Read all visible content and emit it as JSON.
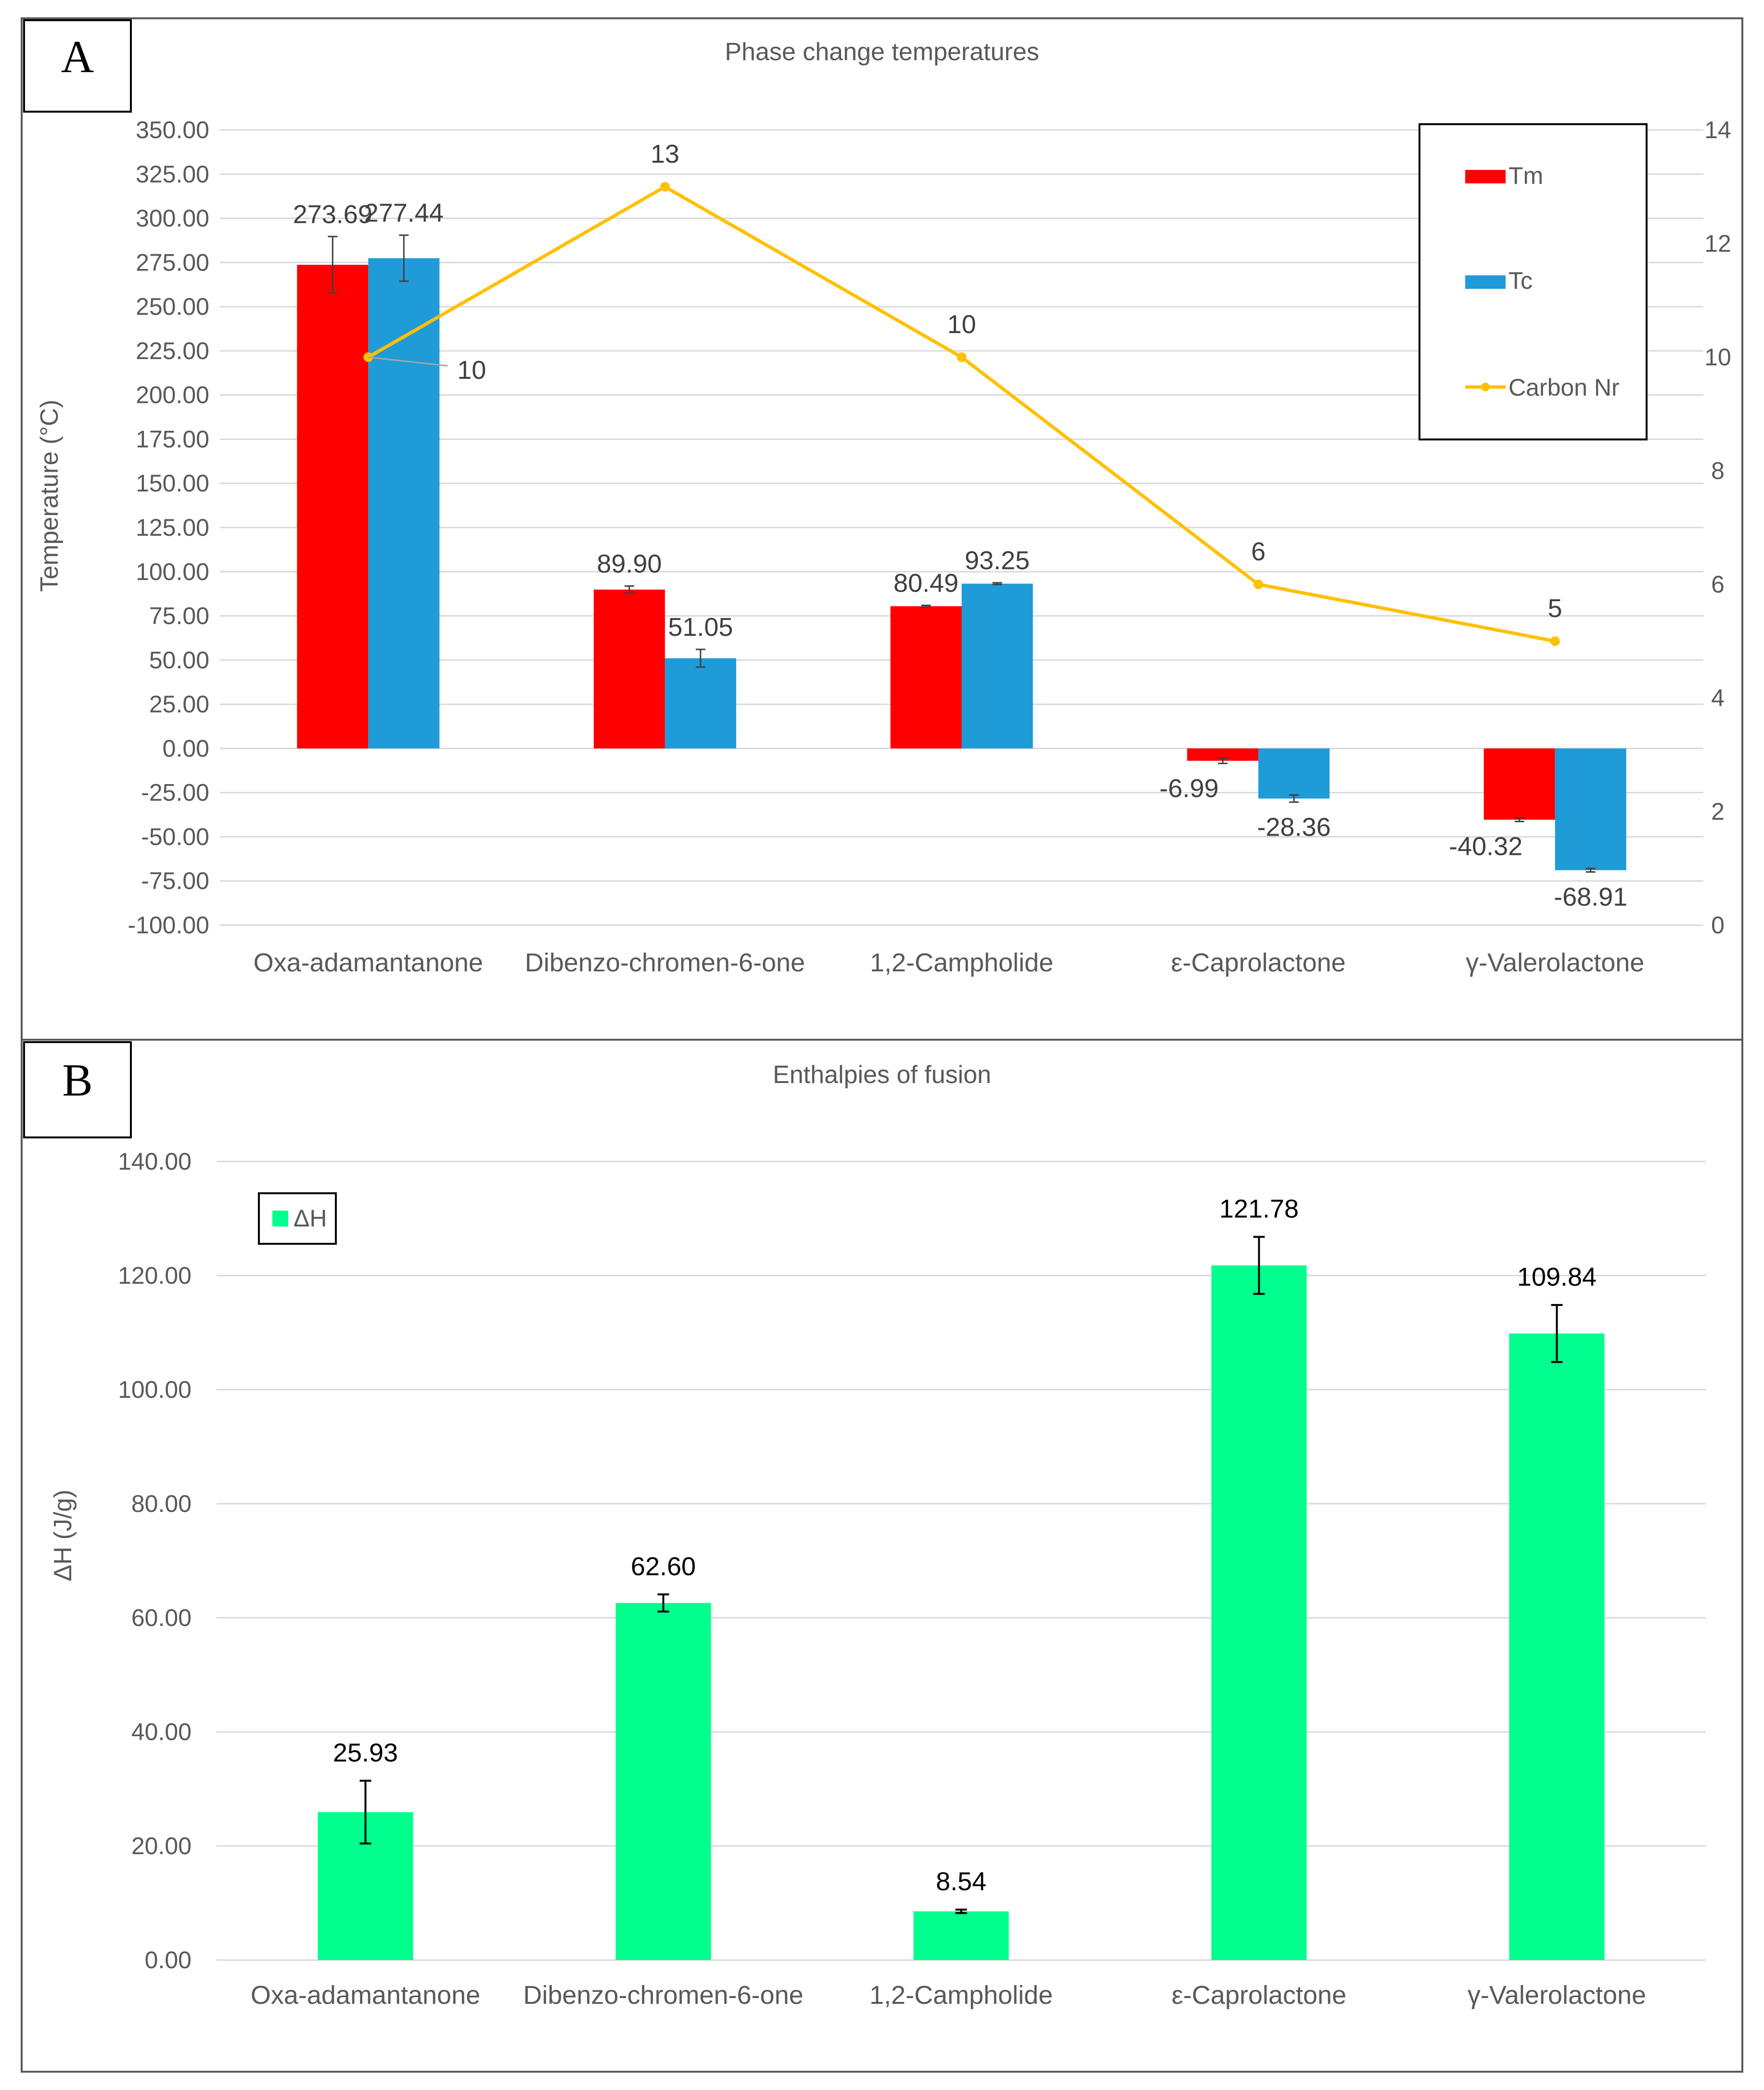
{
  "chart_data": [
    {
      "panel": "A",
      "type": "bar",
      "title": "Phase change temperatures",
      "categories": [
        "Oxa-adamantanone",
        "Dibenzo-chromen-6-one",
        "1,2-Campholide",
        "ε-Caprolactone",
        "γ-Valerolactone"
      ],
      "ylabel": "Temperature (°C)",
      "ylim": [
        -100,
        350
      ],
      "yticks": [
        "350.00",
        "325.00",
        "300.00",
        "275.00",
        "250.00",
        "225.00",
        "200.00",
        "175.00",
        "150.00",
        "125.00",
        "100.00",
        "75.00",
        "50.00",
        "25.00",
        "0.00",
        "-25.00",
        "-50.00",
        "-75.00",
        "-100.00"
      ],
      "y2lim": [
        0,
        14
      ],
      "y2ticks": [
        "14",
        "12",
        "10",
        "8",
        "6",
        "4",
        "2",
        "0"
      ],
      "series": [
        {
          "name": "Tm",
          "kind": "bar",
          "color": "#ff0000",
          "values": [
            273.69,
            89.9,
            80.49,
            -6.99,
            -40.32
          ],
          "errors": [
            16,
            2,
            0.5,
            1.5,
            1
          ],
          "labels": [
            "273.69",
            "89.90",
            "80.49",
            "-6.99",
            "-40.32"
          ]
        },
        {
          "name": "Tc",
          "kind": "bar",
          "color": "#1f9bd8",
          "values": [
            277.44,
            51.05,
            93.25,
            -28.36,
            -68.91
          ],
          "errors": [
            13,
            5,
            0.5,
            2,
            1
          ],
          "labels": [
            "277.44",
            "51.05",
            "93.25",
            "-28.36",
            "-68.91"
          ]
        },
        {
          "name": "Carbon Nr",
          "kind": "line",
          "axis": "secondary",
          "color": "#ffc000",
          "values": [
            10,
            13,
            10,
            6,
            5
          ],
          "labels": [
            "10",
            "13",
            "10",
            "6",
            "5"
          ]
        }
      ],
      "legend_position": "top-right"
    },
    {
      "panel": "B",
      "type": "bar",
      "title": "Enthalpies of fusion",
      "categories": [
        "Oxa-adamantanone",
        "Dibenzo-chromen-6-one",
        "1,2-Campholide",
        "ε-Caprolactone",
        "γ-Valerolactone"
      ],
      "ylabel": "ΔH (J/g)",
      "ylim": [
        0,
        140
      ],
      "yticks": [
        "140.00",
        "120.00",
        "100.00",
        "80.00",
        "60.00",
        "40.00",
        "20.00",
        "0.00"
      ],
      "series": [
        {
          "name": "ΔH",
          "kind": "bar",
          "color": "#00ff8c",
          "values": [
            25.93,
            62.6,
            8.54,
            121.78,
            109.84
          ],
          "errors": [
            5.5,
            1.5,
            0.3,
            5,
            5
          ],
          "labels": [
            "25.93",
            "62.60",
            "8.54",
            "121.78",
            "109.84"
          ]
        }
      ],
      "legend_position": "top-left"
    }
  ]
}
